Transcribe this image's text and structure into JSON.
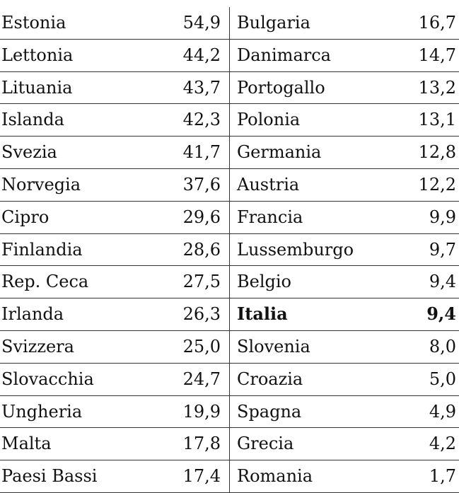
{
  "table": {
    "rows": [
      [
        "Estonia",
        "54,9",
        "Bulgaria",
        "16,7"
      ],
      [
        "Lettonia",
        "44,2",
        "Danimarca",
        "14,7"
      ],
      [
        "Lituania",
        "43,7",
        "Portogallo",
        "13,2"
      ],
      [
        "Islanda",
        "42,3",
        "Polonia",
        "13,1"
      ],
      [
        "Svezia",
        "41,7",
        "Germania",
        "12,8"
      ],
      [
        "Norvegia",
        "37,6",
        "Austria",
        "12,2"
      ],
      [
        "Cipro",
        "29,6",
        "Francia",
        "9,9"
      ],
      [
        "Finlandia",
        "28,6",
        "Lussemburgo",
        "9,7"
      ],
      [
        "Rep. Ceca",
        "27,5",
        "Belgio",
        "9,4"
      ],
      [
        "Irlanda",
        "26,3",
        "Italia",
        "9,4"
      ],
      [
        "Svizzera",
        "25,0",
        "Slovenia",
        "8,0"
      ],
      [
        "Slovacchia",
        "24,7",
        "Croazia",
        "5,0"
      ],
      [
        "Ungheria",
        "19,9",
        "Spagna",
        "4,9"
      ],
      [
        "Malta",
        "17,8",
        "Grecia",
        "4,2"
      ],
      [
        "Paesi Bassi",
        "17,4",
        "Romania",
        "1,7"
      ]
    ]
  }
}
